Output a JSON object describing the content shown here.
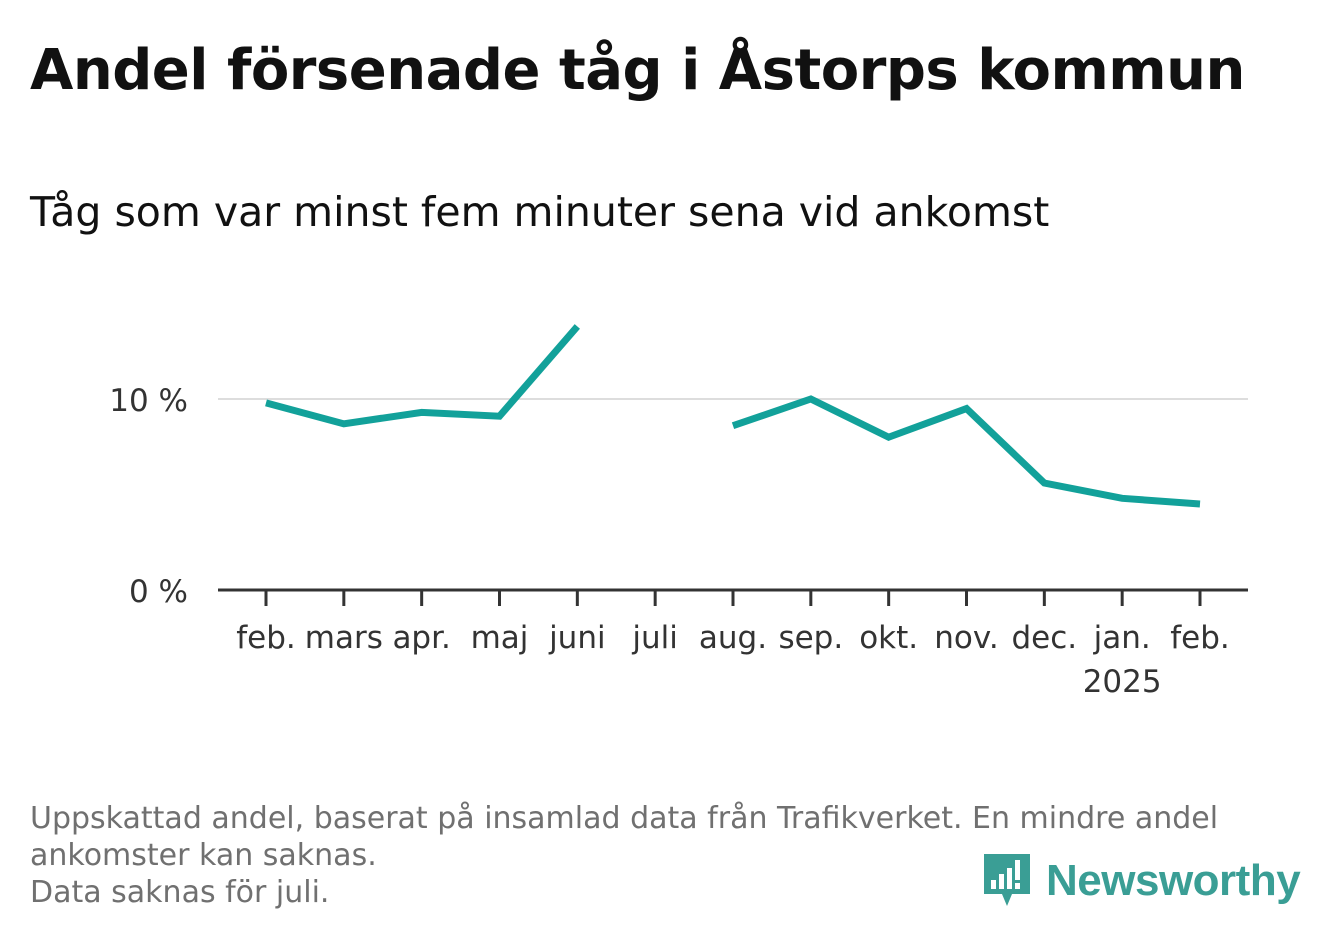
{
  "title": "Andel försenade tåg i Åstorps kommun",
  "subtitle": "Tåg som var minst fem minuter sena vid ankomst",
  "footnote": {
    "line1": "Uppskattad andel, baserat på insamlad data från Trafikverket. En mindre andel",
    "line2": "ankomster kan saknas.",
    "line3": "Data saknas för juli."
  },
  "logo": {
    "text": "Newsworthy",
    "icon": "newsworthy-bar-chart-icon"
  },
  "colors": {
    "line": "#12a19a",
    "axis": "#333333",
    "grid": "#dddddd"
  },
  "chart_data": {
    "type": "line",
    "title": "Andel försenade tåg i Åstorps kommun",
    "subtitle": "Tåg som var minst fem minuter sena vid ankomst",
    "categories": [
      "feb.",
      "mars",
      "apr.",
      "maj",
      "juni",
      "juli",
      "aug.",
      "sep.",
      "okt.",
      "nov.",
      "dec.",
      "jan.",
      "feb."
    ],
    "category_sublabels": [
      "",
      "",
      "",
      "",
      "",
      "",
      "",
      "",
      "",
      "",
      "",
      "2025",
      ""
    ],
    "series": [
      {
        "values": [
          9.8,
          8.7,
          9.3,
          9.1,
          13.8,
          null,
          8.6,
          10.0,
          8.0,
          9.5,
          5.6,
          4.8,
          4.5
        ]
      }
    ],
    "y_ticks": [
      0,
      10
    ],
    "y_tick_labels": [
      "0 %",
      "10 %"
    ],
    "ylim": [
      0,
      14
    ],
    "grid": true,
    "legend": "none"
  }
}
